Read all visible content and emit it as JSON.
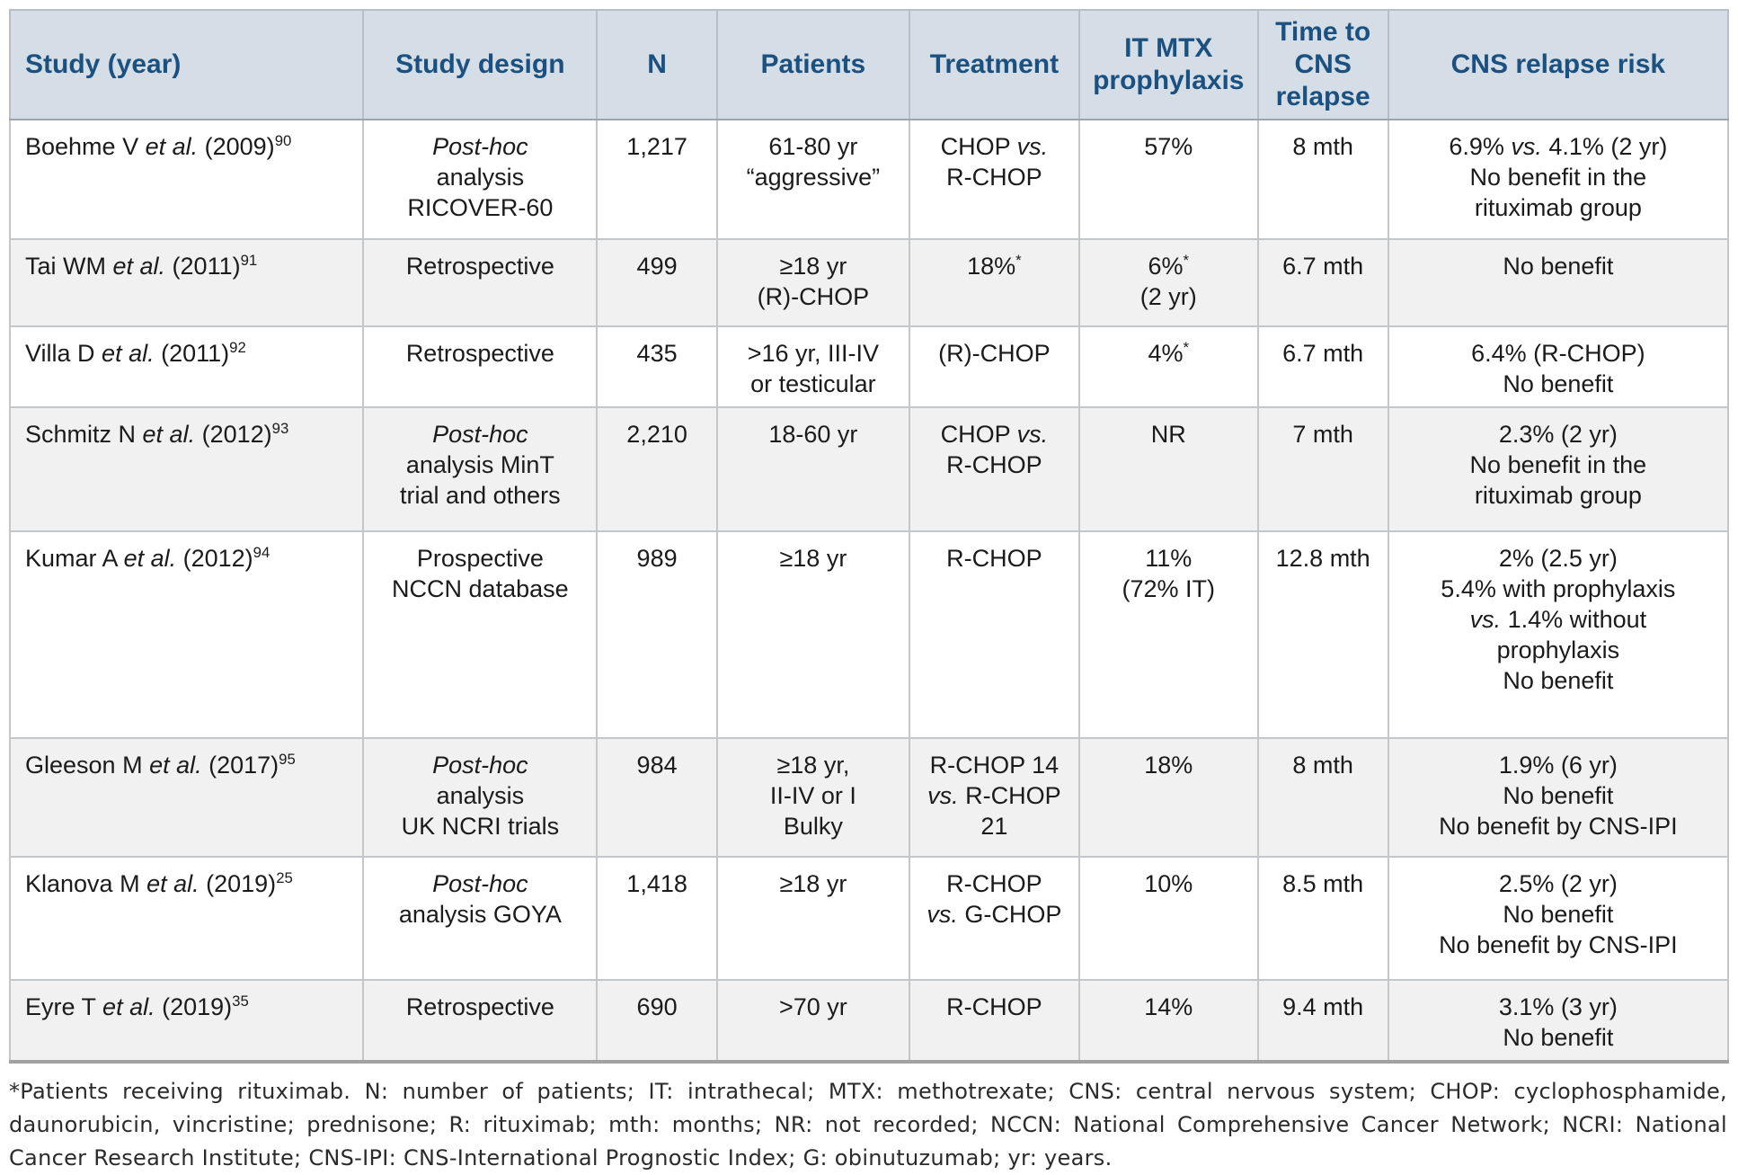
{
  "colors": {
    "header_bg": "#d5dee6",
    "header_text": "#1b5181",
    "stripe_bg": "#f1f1f1",
    "inner_border": "#c4c7ca",
    "outer_bottom_border": "#a2a2a2",
    "body_text": "#1b1b1b"
  },
  "table": {
    "header": [
      {
        "label": "Study (year)"
      },
      {
        "label": "Study design"
      },
      {
        "label": "N"
      },
      {
        "label": "Patients"
      },
      {
        "label": "Treatment"
      },
      {
        "label": "IT MTX prophylaxis"
      },
      {
        "label": "Time to CNS relapse"
      },
      {
        "label": "CNS relapse risk"
      }
    ],
    "rows": [
      {
        "cells": [
          {
            "lines": [
              [
                {
                  "t": "Boehme V "
                },
                {
                  "t": "et al.",
                  "i": true
                },
                {
                  "t": " (2009)"
                },
                {
                  "t": "90",
                  "s": true
                }
              ]
            ]
          },
          {
            "lines": [
              [
                {
                  "t": "Post-hoc",
                  "i": true
                }
              ],
              [
                {
                  "t": "analysis"
                }
              ],
              [
                {
                  "t": "RICOVER-60"
                }
              ]
            ]
          },
          {
            "lines": [
              [
                {
                  "t": "1,217"
                }
              ]
            ]
          },
          {
            "lines": [
              [
                {
                  "t": "61-80 yr"
                }
              ],
              [
                {
                  "t": "“aggressive”"
                }
              ]
            ]
          },
          {
            "lines": [
              [
                {
                  "t": "CHOP "
                },
                {
                  "t": "vs.",
                  "i": true
                }
              ],
              [
                {
                  "t": "R-CHOP"
                }
              ]
            ]
          },
          {
            "lines": [
              [
                {
                  "t": "57%"
                }
              ]
            ]
          },
          {
            "lines": [
              [
                {
                  "t": "8 mth"
                }
              ]
            ]
          },
          {
            "lines": [
              [
                {
                  "t": "6.9% "
                },
                {
                  "t": "vs.",
                  "i": true
                },
                {
                  "t": " 4.1% (2 yr)"
                }
              ],
              [
                {
                  "t": "No benefit in the"
                }
              ],
              [
                {
                  "t": "rituximab group"
                }
              ]
            ]
          }
        ]
      },
      {
        "cells": [
          {
            "lines": [
              [
                {
                  "t": "Tai WM "
                },
                {
                  "t": "et al.",
                  "i": true
                },
                {
                  "t": " (2011)"
                },
                {
                  "t": "91",
                  "s": true
                }
              ]
            ]
          },
          {
            "lines": [
              [
                {
                  "t": "Retrospective"
                }
              ]
            ]
          },
          {
            "lines": [
              [
                {
                  "t": "499"
                }
              ]
            ]
          },
          {
            "lines": [
              [
                {
                  "t": "≥18 yr"
                }
              ],
              [
                {
                  "t": "(R)-CHOP"
                }
              ]
            ]
          },
          {
            "lines": [
              [
                {
                  "t": "18%"
                },
                {
                  "t": "*",
                  "s": true
                }
              ]
            ]
          },
          {
            "lines": [
              [
                {
                  "t": "6%"
                },
                {
                  "t": "*",
                  "s": true
                }
              ],
              [
                {
                  "t": "(2 yr)"
                }
              ]
            ]
          },
          {
            "lines": [
              [
                {
                  "t": "6.7 mth"
                }
              ]
            ]
          },
          {
            "lines": [
              [
                {
                  "t": "No benefit"
                }
              ]
            ]
          }
        ]
      },
      {
        "cells": [
          {
            "lines": [
              [
                {
                  "t": "Villa D "
                },
                {
                  "t": "et al.",
                  "i": true
                },
                {
                  "t": " (2011)"
                },
                {
                  "t": "92",
                  "s": true
                }
              ]
            ]
          },
          {
            "lines": [
              [
                {
                  "t": "Retrospective"
                }
              ]
            ]
          },
          {
            "lines": [
              [
                {
                  "t": "435"
                }
              ]
            ]
          },
          {
            "lines": [
              [
                {
                  "t": ">16 yr, III-IV"
                }
              ],
              [
                {
                  "t": "or testicular"
                }
              ]
            ]
          },
          {
            "lines": [
              [
                {
                  "t": "(R)-CHOP"
                }
              ]
            ]
          },
          {
            "lines": [
              [
                {
                  "t": "4%"
                },
                {
                  "t": "*",
                  "s": true
                }
              ]
            ]
          },
          {
            "lines": [
              [
                {
                  "t": "6.7 mth"
                }
              ]
            ]
          },
          {
            "lines": [
              [
                {
                  "t": "6.4% (R-CHOP)"
                }
              ],
              [
                {
                  "t": "No benefit"
                }
              ]
            ]
          }
        ]
      },
      {
        "cells": [
          {
            "lines": [
              [
                {
                  "t": "Schmitz N "
                },
                {
                  "t": "et al.",
                  "i": true
                },
                {
                  "t": " (2012)"
                },
                {
                  "t": "93",
                  "s": true
                }
              ]
            ]
          },
          {
            "lines": [
              [
                {
                  "t": "Post-hoc",
                  "i": true
                }
              ],
              [
                {
                  "t": "analysis MinT"
                }
              ],
              [
                {
                  "t": "trial and others"
                }
              ]
            ]
          },
          {
            "lines": [
              [
                {
                  "t": "2,210"
                }
              ]
            ]
          },
          {
            "lines": [
              [
                {
                  "t": "18-60 yr"
                }
              ]
            ]
          },
          {
            "lines": [
              [
                {
                  "t": "CHOP "
                },
                {
                  "t": "vs.",
                  "i": true
                }
              ],
              [
                {
                  "t": "R-CHOP"
                }
              ]
            ]
          },
          {
            "lines": [
              [
                {
                  "t": "NR"
                }
              ]
            ]
          },
          {
            "lines": [
              [
                {
                  "t": "7 mth"
                }
              ]
            ]
          },
          {
            "lines": [
              [
                {
                  "t": "2.3% (2 yr)"
                }
              ],
              [
                {
                  "t": "No benefit in the"
                }
              ],
              [
                {
                  "t": "rituximab group"
                }
              ]
            ]
          }
        ]
      },
      {
        "cells": [
          {
            "lines": [
              [
                {
                  "t": "Kumar A "
                },
                {
                  "t": "et al.",
                  "i": true
                },
                {
                  "t": " (2012)"
                },
                {
                  "t": "94",
                  "s": true
                }
              ]
            ]
          },
          {
            "lines": [
              [
                {
                  "t": "Prospective"
                }
              ],
              [
                {
                  "t": "NCCN database"
                }
              ]
            ]
          },
          {
            "lines": [
              [
                {
                  "t": "989"
                }
              ]
            ]
          },
          {
            "lines": [
              [
                {
                  "t": "≥18 yr"
                }
              ]
            ]
          },
          {
            "lines": [
              [
                {
                  "t": "R-CHOP"
                }
              ]
            ]
          },
          {
            "lines": [
              [
                {
                  "t": "11%"
                }
              ],
              [
                {
                  "t": "(72% IT)"
                }
              ]
            ]
          },
          {
            "lines": [
              [
                {
                  "t": "12.8 mth"
                }
              ]
            ]
          },
          {
            "lines": [
              [
                {
                  "t": "2% (2.5 yr)"
                }
              ],
              [
                {
                  "t": "5.4% with prophylaxis"
                }
              ],
              [
                {
                  "t": "vs.",
                  "i": true
                },
                {
                  "t": " 1.4% without"
                }
              ],
              [
                {
                  "t": "prophylaxis"
                }
              ],
              [
                {
                  "t": "No benefit"
                }
              ]
            ]
          }
        ]
      },
      {
        "cells": [
          {
            "lines": [
              [
                {
                  "t": "Gleeson M "
                },
                {
                  "t": "et al.",
                  "i": true
                },
                {
                  "t": " (2017)"
                },
                {
                  "t": "95",
                  "s": true
                }
              ]
            ]
          },
          {
            "lines": [
              [
                {
                  "t": "Post-hoc",
                  "i": true
                }
              ],
              [
                {
                  "t": "analysis"
                }
              ],
              [
                {
                  "t": "UK NCRI trials"
                }
              ]
            ]
          },
          {
            "lines": [
              [
                {
                  "t": "984"
                }
              ]
            ]
          },
          {
            "lines": [
              [
                {
                  "t": "≥18 yr,"
                }
              ],
              [
                {
                  "t": "II-IV or I"
                }
              ],
              [
                {
                  "t": "Bulky"
                }
              ]
            ]
          },
          {
            "lines": [
              [
                {
                  "t": "R-CHOP 14"
                }
              ],
              [
                {
                  "t": "vs.",
                  "i": true
                },
                {
                  "t": " R-CHOP"
                }
              ],
              [
                {
                  "t": "21"
                }
              ]
            ]
          },
          {
            "lines": [
              [
                {
                  "t": "18%"
                }
              ]
            ]
          },
          {
            "lines": [
              [
                {
                  "t": "8 mth"
                }
              ]
            ]
          },
          {
            "lines": [
              [
                {
                  "t": "1.9% (6 yr)"
                }
              ],
              [
                {
                  "t": "No benefit"
                }
              ],
              [
                {
                  "t": "No benefit by CNS-IPI"
                }
              ]
            ]
          }
        ]
      },
      {
        "cells": [
          {
            "lines": [
              [
                {
                  "t": "Klanova M "
                },
                {
                  "t": "et al.",
                  "i": true
                },
                {
                  "t": " (2019)"
                },
                {
                  "t": "25",
                  "s": true
                }
              ]
            ]
          },
          {
            "lines": [
              [
                {
                  "t": "Post-hoc",
                  "i": true
                }
              ],
              [
                {
                  "t": "analysis GOYA"
                }
              ]
            ]
          },
          {
            "lines": [
              [
                {
                  "t": "1,418"
                }
              ]
            ]
          },
          {
            "lines": [
              [
                {
                  "t": "≥18 yr"
                }
              ]
            ]
          },
          {
            "lines": [
              [
                {
                  "t": "R-CHOP"
                }
              ],
              [
                {
                  "t": "vs.",
                  "i": true
                },
                {
                  "t": " G-CHOP"
                }
              ]
            ]
          },
          {
            "lines": [
              [
                {
                  "t": "10%"
                }
              ]
            ]
          },
          {
            "lines": [
              [
                {
                  "t": "8.5 mth"
                }
              ]
            ]
          },
          {
            "lines": [
              [
                {
                  "t": "2.5% (2 yr)"
                }
              ],
              [
                {
                  "t": "No benefit"
                }
              ],
              [
                {
                  "t": "No benefit by CNS-IPI"
                }
              ]
            ]
          }
        ]
      },
      {
        "cells": [
          {
            "lines": [
              [
                {
                  "t": "Eyre T "
                },
                {
                  "t": "et al.",
                  "i": true
                },
                {
                  "t": " (2019)"
                },
                {
                  "t": "35",
                  "s": true
                }
              ]
            ]
          },
          {
            "lines": [
              [
                {
                  "t": "Retrospective"
                }
              ]
            ]
          },
          {
            "lines": [
              [
                {
                  "t": "690"
                }
              ]
            ]
          },
          {
            "lines": [
              [
                {
                  "t": ">70 yr"
                }
              ]
            ]
          },
          {
            "lines": [
              [
                {
                  "t": "R-CHOP"
                }
              ]
            ]
          },
          {
            "lines": [
              [
                {
                  "t": "14%"
                }
              ]
            ]
          },
          {
            "lines": [
              [
                {
                  "t": "9.4 mth"
                }
              ]
            ]
          },
          {
            "lines": [
              [
                {
                  "t": "3.1% (3 yr)"
                }
              ],
              [
                {
                  "t": "No benefit"
                }
              ]
            ]
          }
        ]
      }
    ]
  },
  "footnote": {
    "text": "*Patients receiving rituximab. N: number of patients; IT: intrathecal; MTX: methotrexate; CNS: central nervous system; CHOP: cyclophosphamide, daunorubicin, vincristine; prednisone;  R: rituximab; mth: months; NR: not recorded; NCCN: National Comprehensive Cancer Network; NCRI: National Cancer Research Institute; CNS-IPI: CNS-International Prognostic Index; G: obinutuzumab; yr: years."
  }
}
